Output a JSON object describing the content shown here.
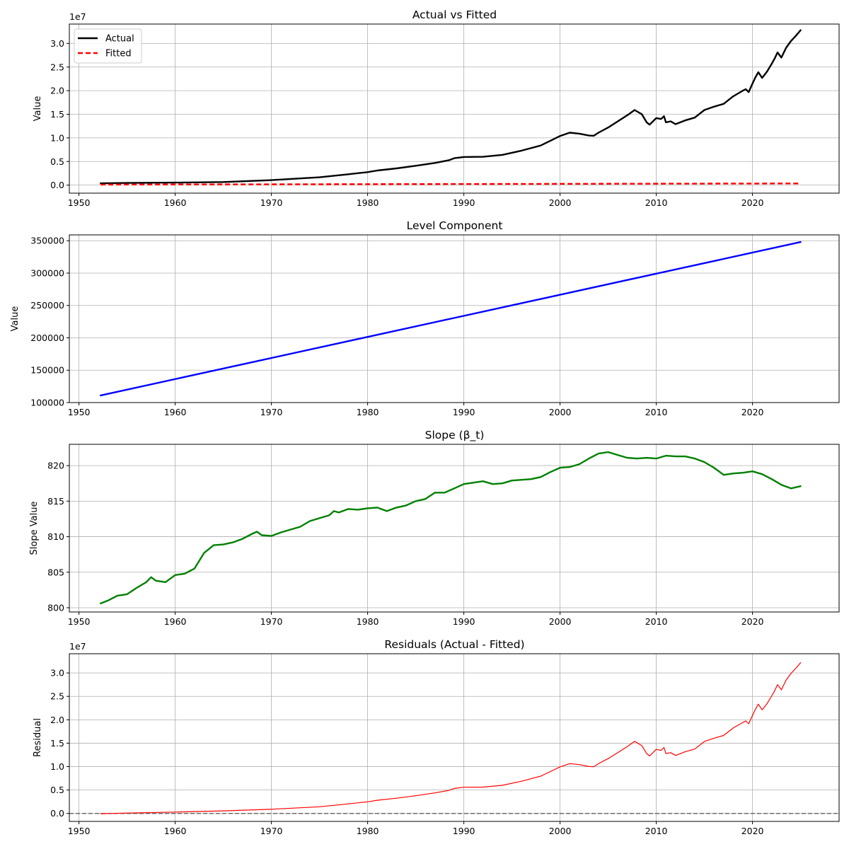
{
  "chart_data": [
    {
      "type": "line",
      "title": "Actual vs Fitted",
      "xlabel": "",
      "ylabel": "Value",
      "y_offset_label": "1e7",
      "y_scale": 10000000,
      "xlim": [
        1949,
        2029
      ],
      "ylim": [
        -1700000,
        34100000
      ],
      "xticks": [
        1950,
        1960,
        1970,
        1980,
        1990,
        2000,
        2010,
        2020
      ],
      "yticks": [
        0,
        5000000,
        10000000,
        15000000,
        20000000,
        25000000,
        30000000
      ],
      "ytick_labels": [
        "0.0",
        "0.5",
        "1.0",
        "1.5",
        "2.0",
        "2.5",
        "3.0"
      ],
      "grid": true,
      "legend": "top-left",
      "series": [
        {
          "name": "Actual",
          "color": "#000000",
          "style": "solid",
          "width": 2.4,
          "x": [
            1952.25,
            1955,
            1960,
            1965,
            1970,
            1975,
            1978,
            1980,
            1981,
            1983,
            1985,
            1987,
            1988.5,
            1989,
            1990,
            1992,
            1994,
            1996,
            1998,
            1999,
            2000,
            2001,
            2002,
            2003,
            2003.5,
            2004,
            2005,
            2006,
            2007,
            2007.75,
            2008.5,
            2009,
            2009.3,
            2010,
            2010.5,
            2010.8,
            2011,
            2011.5,
            2012,
            2013,
            2014,
            2015,
            2016,
            2017,
            2018,
            2019,
            2019.3,
            2019.6,
            2020,
            2020.3,
            2020.6,
            2021,
            2021.5,
            2022,
            2022.3,
            2022.6,
            2023,
            2023.5,
            2024,
            2024.5,
            2025
          ],
          "y": [
            380000,
            450000,
            530000,
            650000,
            1050000,
            1650000,
            2300000,
            2750000,
            3100000,
            3550000,
            4100000,
            4700000,
            5300000,
            5700000,
            5950000,
            6000000,
            6400000,
            7300000,
            8400000,
            9400000,
            10400000,
            11100000,
            10900000,
            10500000,
            10450000,
            11100000,
            12200000,
            13500000,
            14800000,
            15900000,
            15000000,
            13300000,
            12800000,
            14200000,
            14000000,
            14600000,
            13300000,
            13500000,
            12900000,
            13700000,
            14300000,
            15900000,
            16600000,
            17200000,
            18800000,
            20000000,
            20300000,
            19700000,
            21500000,
            22800000,
            23900000,
            22700000,
            24000000,
            25700000,
            26800000,
            28100000,
            27000000,
            29100000,
            30500000,
            31600000,
            32800000
          ]
        },
        {
          "name": "Fitted",
          "color": "#ff0000",
          "style": "dashed",
          "width": 2.4,
          "x": [
            1952.25,
            2025
          ],
          "y": [
            111000,
            348000
          ]
        }
      ]
    },
    {
      "type": "line",
      "title": "Level Component",
      "xlabel": "",
      "ylabel": "Value",
      "xlim": [
        1949,
        2029
      ],
      "ylim": [
        100000,
        359000
      ],
      "xticks": [
        1950,
        1960,
        1970,
        1980,
        1990,
        2000,
        2010,
        2020
      ],
      "yticks": [
        100000,
        150000,
        200000,
        250000,
        300000,
        350000
      ],
      "ytick_labels": [
        "100000",
        "150000",
        "200000",
        "250000",
        "300000",
        "350000"
      ],
      "grid": true,
      "series": [
        {
          "color": "#0000ff",
          "style": "solid",
          "width": 2.4,
          "x": [
            1952.25,
            2025
          ],
          "y": [
            111000,
            348000
          ]
        }
      ]
    },
    {
      "type": "line",
      "title": "Slope (β_t)",
      "xlabel": "",
      "ylabel": "Slope Value",
      "xlim": [
        1949,
        2029
      ],
      "ylim": [
        799.4,
        823.0
      ],
      "xticks": [
        1950,
        1960,
        1970,
        1980,
        1990,
        2000,
        2010,
        2020
      ],
      "yticks": [
        800,
        805,
        810,
        815,
        820
      ],
      "ytick_labels": [
        "800",
        "805",
        "810",
        "815",
        "820"
      ],
      "grid": true,
      "series": [
        {
          "color": "#008000",
          "style": "solid",
          "width": 2.4,
          "x": [
            1952.25,
            1953,
            1954,
            1955,
            1956,
            1957,
            1957.5,
            1958,
            1959,
            1960,
            1961,
            1962,
            1963,
            1964,
            1965,
            1966,
            1967,
            1968,
            1968.5,
            1969,
            1970,
            1971,
            1972,
            1973,
            1974,
            1975,
            1976,
            1976.5,
            1977,
            1978,
            1979,
            1980,
            1981,
            1982,
            1983,
            1984,
            1985,
            1986,
            1987,
            1988,
            1989,
            1990,
            1991,
            1992,
            1993,
            1994,
            1995,
            1996,
            1997,
            1998,
            1999,
            2000,
            2001,
            2002,
            2003,
            2004,
            2005,
            2006,
            2007,
            2008,
            2009,
            2010,
            2011,
            2012,
            2013,
            2014,
            2015,
            2016,
            2017,
            2018,
            2019,
            2020,
            2021,
            2022,
            2023,
            2024,
            2025
          ],
          "y": [
            800.6,
            801.0,
            801.7,
            801.9,
            802.8,
            803.6,
            804.3,
            803.8,
            803.6,
            804.6,
            804.8,
            805.5,
            807.7,
            808.8,
            808.9,
            809.2,
            809.7,
            810.4,
            810.7,
            810.2,
            810.1,
            810.6,
            811.0,
            811.4,
            812.2,
            812.6,
            813.0,
            813.6,
            813.4,
            813.9,
            813.8,
            814.0,
            814.1,
            813.6,
            814.1,
            814.4,
            815.0,
            815.3,
            816.2,
            816.2,
            816.8,
            817.4,
            817.6,
            817.8,
            817.4,
            817.5,
            817.9,
            818.0,
            818.1,
            818.4,
            819.1,
            819.7,
            819.8,
            820.2,
            821.0,
            821.7,
            821.9,
            821.5,
            821.1,
            821.0,
            821.1,
            821.0,
            821.4,
            821.3,
            821.3,
            821.0,
            820.5,
            819.7,
            818.7,
            818.9,
            819.0,
            819.2,
            818.8,
            818.1,
            817.3,
            816.8,
            817.1
          ]
        }
      ]
    },
    {
      "type": "line",
      "title": "Residuals (Actual - Fitted)",
      "xlabel": "",
      "ylabel": "Residual",
      "y_offset_label": "1e7",
      "y_scale": 10000000,
      "xlim": [
        1949,
        2029
      ],
      "ylim": [
        -1700000,
        34100000
      ],
      "xticks": [
        1950,
        1960,
        1970,
        1980,
        1990,
        2000,
        2010,
        2020
      ],
      "yticks": [
        0,
        5000000,
        10000000,
        15000000,
        20000000,
        25000000,
        30000000
      ],
      "ytick_labels": [
        "0.0",
        "0.5",
        "1.0",
        "1.5",
        "2.0",
        "2.5",
        "3.0"
      ],
      "grid": true,
      "zero_line": true,
      "series": [
        {
          "color": "#ff0000",
          "style": "solid",
          "width": 1.2,
          "x": [
            1952.25,
            1955,
            1960,
            1965,
            1970,
            1975,
            1978,
            1980,
            1981,
            1983,
            1985,
            1987,
            1988.5,
            1989,
            1990,
            1992,
            1994,
            1996,
            1998,
            1999,
            2000,
            2001,
            2002,
            2003,
            2003.5,
            2004,
            2005,
            2006,
            2007,
            2007.75,
            2008.5,
            2009,
            2009.3,
            2010,
            2010.5,
            2010.8,
            2011,
            2011.5,
            2012,
            2013,
            2014,
            2015,
            2016,
            2017,
            2018,
            2019,
            2019.3,
            2019.6,
            2020,
            2020.3,
            2020.6,
            2021,
            2021.5,
            2022,
            2022.3,
            2022.6,
            2023,
            2023.5,
            2024,
            2024.5,
            2025
          ],
          "y": [
            -50000,
            80000,
            300000,
            550000,
            900000,
            1420000,
            2050000,
            2480000,
            2820000,
            3250000,
            3780000,
            4380000,
            4950000,
            5340000,
            5590000,
            5620000,
            6000000,
            6880000,
            7960000,
            8950000,
            9940000,
            10640000,
            10430000,
            10020000,
            9970000,
            10620000,
            11710000,
            13000000,
            14290000,
            15400000,
            14480000,
            12790000,
            12290000,
            13680000,
            13470000,
            14080000,
            12780000,
            12980000,
            12380000,
            13170000,
            13760000,
            15360000,
            16060000,
            16650000,
            18250000,
            19440000,
            19740000,
            19140000,
            20930000,
            22230000,
            23330000,
            22120000,
            23410000,
            25110000,
            26200000,
            27500000,
            26400000,
            28500000,
            29890000,
            30990000,
            32190000
          ]
        }
      ]
    }
  ]
}
